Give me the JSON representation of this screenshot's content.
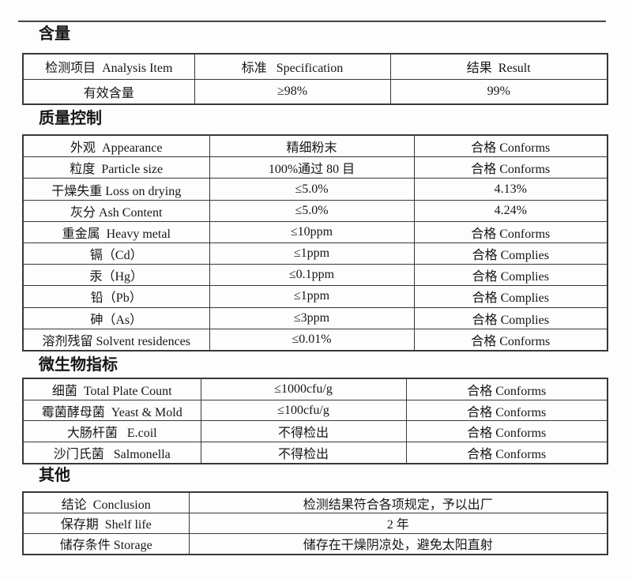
{
  "document": {
    "sections": [
      {
        "id": "content",
        "heading": "含量",
        "rows": [
          [
            "检测项目  Analysis Item",
            "标准   Specification",
            "结果  Result"
          ],
          [
            "有效含量",
            "≥98%",
            "99%"
          ]
        ]
      },
      {
        "id": "quality-control",
        "heading": "质量控制",
        "rows": [
          [
            "外观  Appearance",
            "精细粉末",
            "合格 Conforms"
          ],
          [
            "粒度  Particle size",
            "100%通过 80 目",
            "合格 Conforms"
          ],
          [
            "干燥失重 Loss on drying",
            "≤5.0%",
            "4.13%"
          ],
          [
            "灰分 Ash Content",
            "≤5.0%",
            "4.24%"
          ],
          [
            "重金属  Heavy metal",
            "≤10ppm",
            "合格 Conforms"
          ],
          [
            "镉（Cd）",
            "≤1ppm",
            "合格 Complies"
          ],
          [
            "汞（Hg）",
            "≤0.1ppm",
            "合格 Complies"
          ],
          [
            "铅（Pb）",
            "≤1ppm",
            "合格 Complies"
          ],
          [
            "砷（As）",
            "≤3ppm",
            "合格 Complies"
          ],
          [
            "溶剂残留 Solvent residences",
            "≤0.01%",
            "合格 Conforms"
          ]
        ]
      },
      {
        "id": "microbiological",
        "heading": "微生物指标",
        "rows": [
          [
            "细菌  Total Plate Count",
            "≤1000cfu/g",
            "合格 Conforms"
          ],
          [
            "霉菌酵母菌  Yeast & Mold",
            "≤100cfu/g",
            "合格 Conforms"
          ],
          [
            "大肠杆菌   E.coil",
            "不得检出",
            "合格 Conforms"
          ],
          [
            "沙门氏菌   Salmonella",
            "不得检出",
            "合格 Conforms"
          ]
        ]
      },
      {
        "id": "other",
        "heading": "其他",
        "rows": [
          [
            "结论  Conclusion",
            "检测结果符合各项规定，予以出厂"
          ],
          [
            "保存期  Shelf life",
            "2 年"
          ],
          [
            "储存条件 Storage",
            "储存在干燥阴凉处，避免太阳直射"
          ]
        ]
      }
    ],
    "colors": {
      "border": "#383838",
      "text": "#161616",
      "page_background": "#fdfdfd"
    }
  }
}
